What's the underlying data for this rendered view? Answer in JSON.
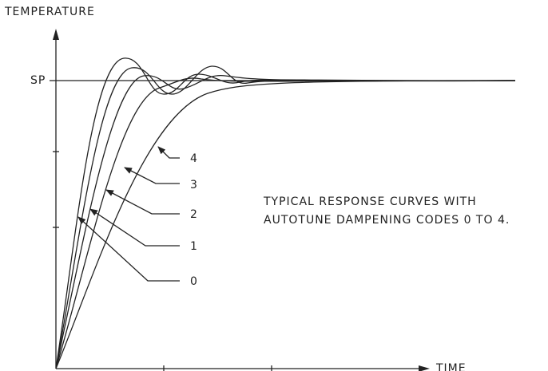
{
  "axis": {
    "y_label": "TEMPERATURE",
    "x_label": "TIME",
    "setpoint": "SP"
  },
  "curve_labels": [
    "0",
    "1",
    "2",
    "3",
    "4"
  ],
  "annotation": [
    "TYPICAL RESPONSE CURVES WITH",
    "AUTOTUNE DAMPENING CODES 0 TO 4."
  ]
}
